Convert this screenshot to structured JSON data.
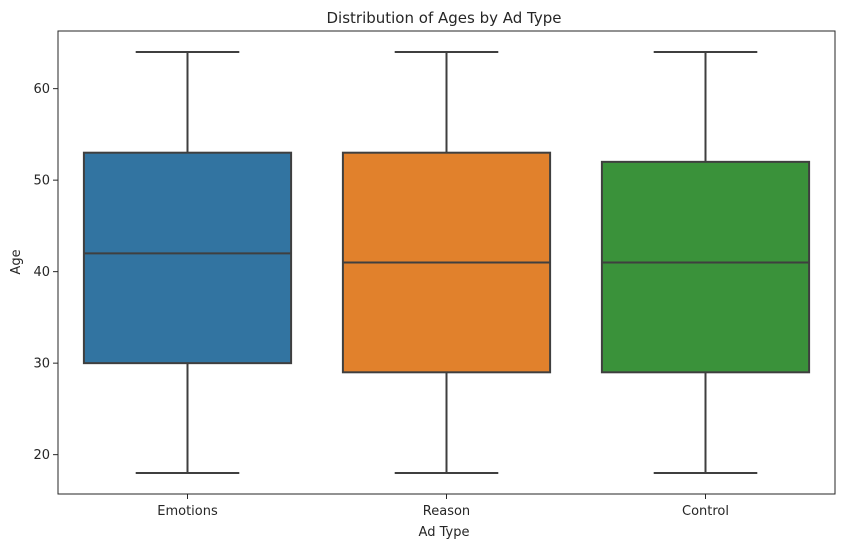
{
  "chart_data": {
    "type": "box",
    "title": "Distribution of Ages by Ad Type",
    "xlabel": "Ad Type",
    "ylabel": "Age",
    "ylim": [
      15.7,
      66.3
    ],
    "yticks": [
      20,
      30,
      40,
      50,
      60
    ],
    "grid": false,
    "legend": "none",
    "categories": [
      "Emotions",
      "Reason",
      "Control"
    ],
    "colors": [
      "#3274a1",
      "#e1812c",
      "#3a923a"
    ],
    "line_color": "#3f3f3f",
    "boxes": [
      {
        "category": "Emotions",
        "whisker_low": 18,
        "q1": 30,
        "median": 42,
        "q3": 53,
        "whisker_high": 64
      },
      {
        "category": "Reason",
        "whisker_low": 18,
        "q1": 29,
        "median": 41,
        "q3": 53,
        "whisker_high": 64
      },
      {
        "category": "Control",
        "whisker_low": 18,
        "q1": 29,
        "median": 41,
        "q3": 52,
        "whisker_high": 64
      }
    ]
  }
}
